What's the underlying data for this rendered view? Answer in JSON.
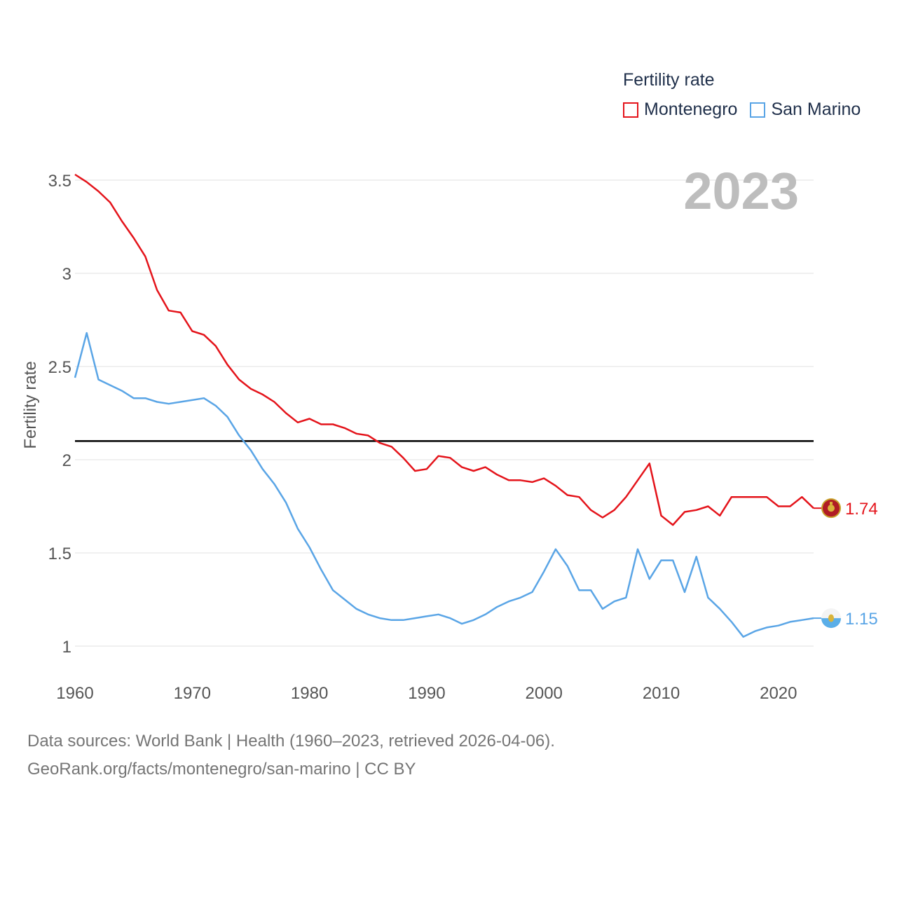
{
  "colors": {
    "montenegro": "#e4141b",
    "san_marino": "#5aa5e6",
    "grid": "#e6e6e6",
    "axis_text": "#555555",
    "year_watermark": "#bdbdbd",
    "reference_line": "#000000"
  },
  "chart_data": {
    "type": "line",
    "title": "Fertility rate",
    "year_label": "2023",
    "ylabel": "Fertility rate",
    "xlabel": "",
    "ylim": [
      0.8,
      3.6
    ],
    "xlim": [
      1960,
      2023
    ],
    "yticks": [
      1,
      1.5,
      2,
      2.5,
      3,
      3.5
    ],
    "ytick_labels": [
      "1",
      "1.5",
      "2",
      "2.5",
      "3",
      "3.5"
    ],
    "xticks": [
      1960,
      1970,
      1980,
      1990,
      2000,
      2010,
      2020
    ],
    "xtick_labels": [
      "1960",
      "1970",
      "1980",
      "1990",
      "2000",
      "2010",
      "2020"
    ],
    "reference_line": 2.1,
    "x": [
      1960,
      1961,
      1962,
      1963,
      1964,
      1965,
      1966,
      1967,
      1968,
      1969,
      1970,
      1971,
      1972,
      1973,
      1974,
      1975,
      1976,
      1977,
      1978,
      1979,
      1980,
      1981,
      1982,
      1983,
      1984,
      1985,
      1986,
      1987,
      1988,
      1989,
      1990,
      1991,
      1992,
      1993,
      1994,
      1995,
      1996,
      1997,
      1998,
      1999,
      2000,
      2001,
      2002,
      2003,
      2004,
      2005,
      2006,
      2007,
      2008,
      2009,
      2010,
      2011,
      2012,
      2013,
      2014,
      2015,
      2016,
      2017,
      2018,
      2019,
      2020,
      2021,
      2022,
      2023
    ],
    "series": [
      {
        "name": "Montenegro",
        "color": "#e4141b",
        "end_label": "1.74",
        "flag": "montenegro-flag",
        "values": [
          3.53,
          3.49,
          3.44,
          3.38,
          3.28,
          3.19,
          3.09,
          2.91,
          2.8,
          2.79,
          2.69,
          2.67,
          2.61,
          2.51,
          2.43,
          2.38,
          2.35,
          2.31,
          2.25,
          2.2,
          2.22,
          2.19,
          2.19,
          2.17,
          2.14,
          2.13,
          2.09,
          2.07,
          2.01,
          1.94,
          1.95,
          2.02,
          2.01,
          1.96,
          1.94,
          1.96,
          1.92,
          1.89,
          1.89,
          1.88,
          1.9,
          1.86,
          1.81,
          1.8,
          1.73,
          1.69,
          1.73,
          1.8,
          1.89,
          1.98,
          1.7,
          1.65,
          1.72,
          1.73,
          1.75,
          1.7,
          1.8,
          1.8,
          1.8,
          1.8,
          1.75,
          1.75,
          1.8,
          1.74
        ]
      },
      {
        "name": "San Marino",
        "color": "#5aa5e6",
        "end_label": "1.15",
        "flag": "san-marino-flag",
        "values": [
          2.44,
          2.68,
          2.43,
          2.4,
          2.37,
          2.33,
          2.33,
          2.31,
          2.3,
          2.31,
          2.32,
          2.33,
          2.29,
          2.23,
          2.13,
          2.05,
          1.95,
          1.87,
          1.77,
          1.63,
          1.53,
          1.41,
          1.3,
          1.25,
          1.2,
          1.17,
          1.15,
          1.14,
          1.14,
          1.15,
          1.16,
          1.17,
          1.15,
          1.12,
          1.14,
          1.17,
          1.21,
          1.24,
          1.26,
          1.29,
          1.4,
          1.52,
          1.43,
          1.3,
          1.3,
          1.2,
          1.24,
          1.26,
          1.52,
          1.36,
          1.46,
          1.46,
          1.29,
          1.48,
          1.26,
          1.2,
          1.13,
          1.05,
          1.08,
          1.1,
          1.11,
          1.13,
          1.14,
          1.15
        ]
      }
    ]
  },
  "footer": {
    "line1": "Data sources: World Bank | Health (1960–2023, retrieved 2026-04-06).",
    "line2": "GeoRank.org/facts/montenegro/san-marino | CC BY"
  }
}
